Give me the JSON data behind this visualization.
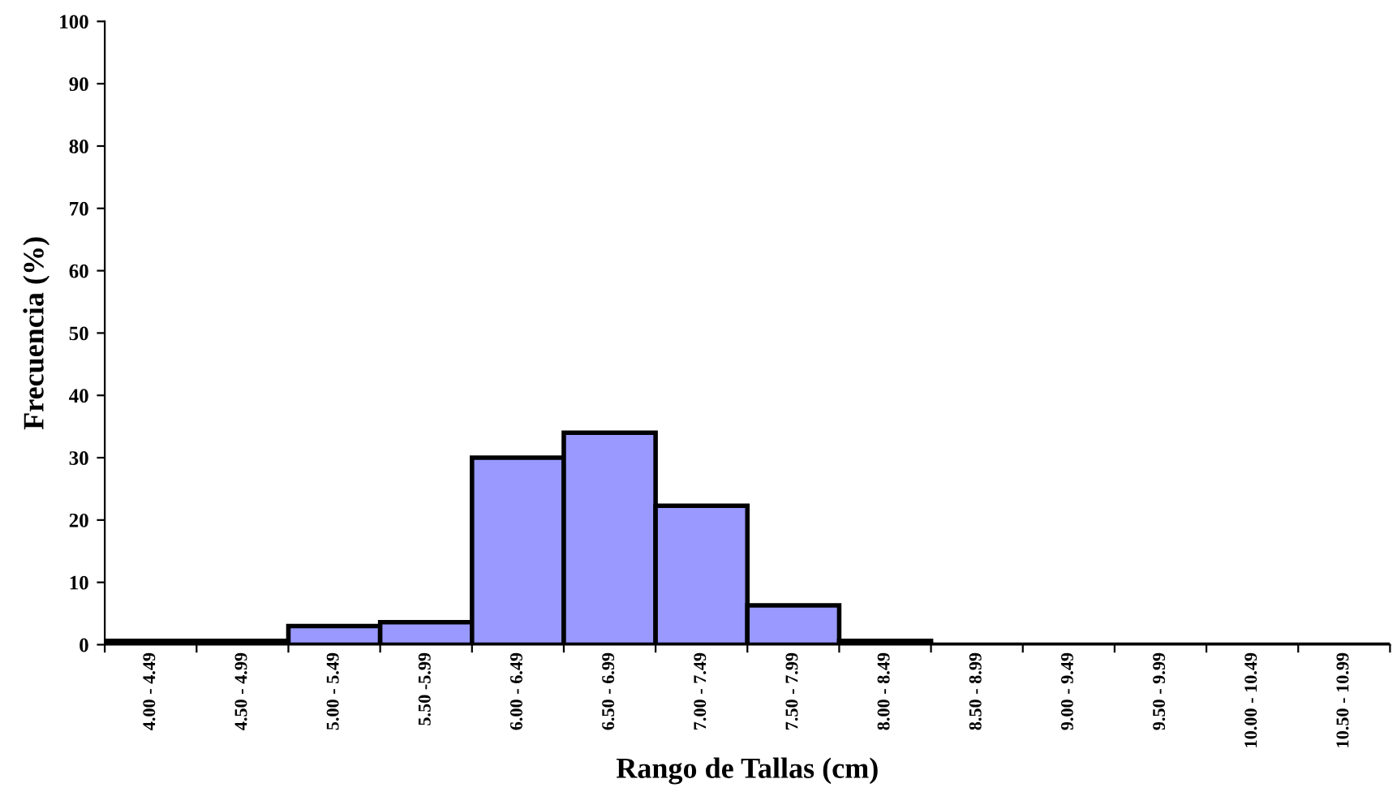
{
  "chart_data": {
    "type": "bar",
    "xlabel": "Rango de Tallas (cm)",
    "ylabel": "Frecuencia (%)",
    "categories": [
      "4.00 - 4.49",
      "4.50 - 4.99",
      "5.00 - 5.49",
      "5.50 -5.99",
      "6.00 - 6.49",
      "6.50 - 6.99",
      "7.00 - 7.49",
      "7.50 - 7.99",
      "8.00 - 8.49",
      "8.50 - 8.99",
      "9.00 - 9.49",
      "9.50 - 9.99",
      "10.00 - 10.49",
      "10.50 - 10.99"
    ],
    "values": [
      0.6,
      0.6,
      3,
      3.6,
      30,
      34,
      22.3,
      6.3,
      0.6,
      0,
      0,
      0,
      0,
      0
    ],
    "color": "#9999ff",
    "ylim": [
      0,
      100
    ],
    "yticks": [
      0,
      10,
      20,
      30,
      40,
      50,
      60,
      70,
      80,
      90,
      100
    ],
    "grid": false
  }
}
